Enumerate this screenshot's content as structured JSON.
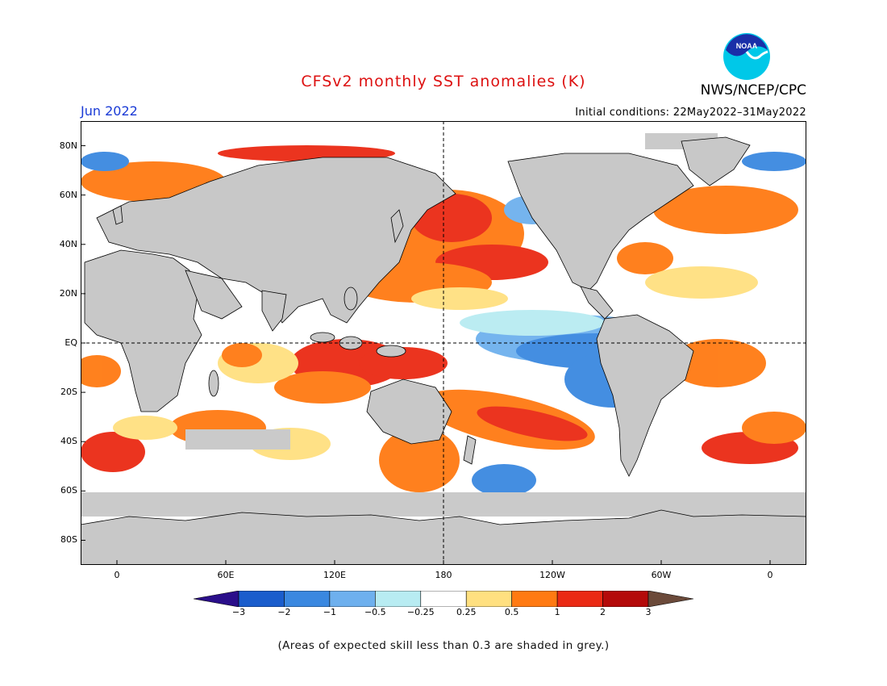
{
  "header": {
    "title": "CFSv2 monthly SST anomalies (K)",
    "agency": "NWS/NCEP/CPC",
    "logo_text": "NOAA",
    "month": "Jun 2022",
    "initial_conditions": "Initial conditions: 22May2022–31May2022"
  },
  "map": {
    "projection": "cylindrical",
    "lon_range": [
      -20,
      380
    ],
    "lat_range": [
      -90,
      90
    ],
    "lat_ticks": [
      {
        "value": 80,
        "label": "80N"
      },
      {
        "value": 60,
        "label": "60N"
      },
      {
        "value": 40,
        "label": "40N"
      },
      {
        "value": 20,
        "label": "20N"
      },
      {
        "value": 0,
        "label": "EQ"
      },
      {
        "value": -20,
        "label": "20S"
      },
      {
        "value": -40,
        "label": "40S"
      },
      {
        "value": -60,
        "label": "60S"
      },
      {
        "value": -80,
        "label": "80S"
      }
    ],
    "lon_ticks": [
      {
        "value": 0,
        "label": "0"
      },
      {
        "value": 60,
        "label": "60E"
      },
      {
        "value": 120,
        "label": "120E"
      },
      {
        "value": 180,
        "label": "180"
      },
      {
        "value": 240,
        "label": "120W"
      },
      {
        "value": 300,
        "label": "60W"
      },
      {
        "value": 360,
        "label": "0"
      }
    ],
    "reference_lines": [
      "equator",
      "dateline"
    ],
    "land_color": "#c8c8c8",
    "low_skill_color": "#c8c8c8"
  },
  "colorbar": {
    "levels": [
      "−3",
      "−2",
      "−1",
      "−0.5",
      "−0.25",
      "0.25",
      "0.5",
      "1",
      "2",
      "3"
    ],
    "colors": [
      "#2a0e8a",
      "#1a5dcc",
      "#3a88e0",
      "#6eb0ee",
      "#b8ecf2",
      "#ffffff",
      "#ffe080",
      "#ff7a12",
      "#ea2a14",
      "#b40a0a",
      "#6b4a3a"
    ]
  },
  "footnote": "(Areas of expected skill less than 0.3 are shaded in grey.)"
}
